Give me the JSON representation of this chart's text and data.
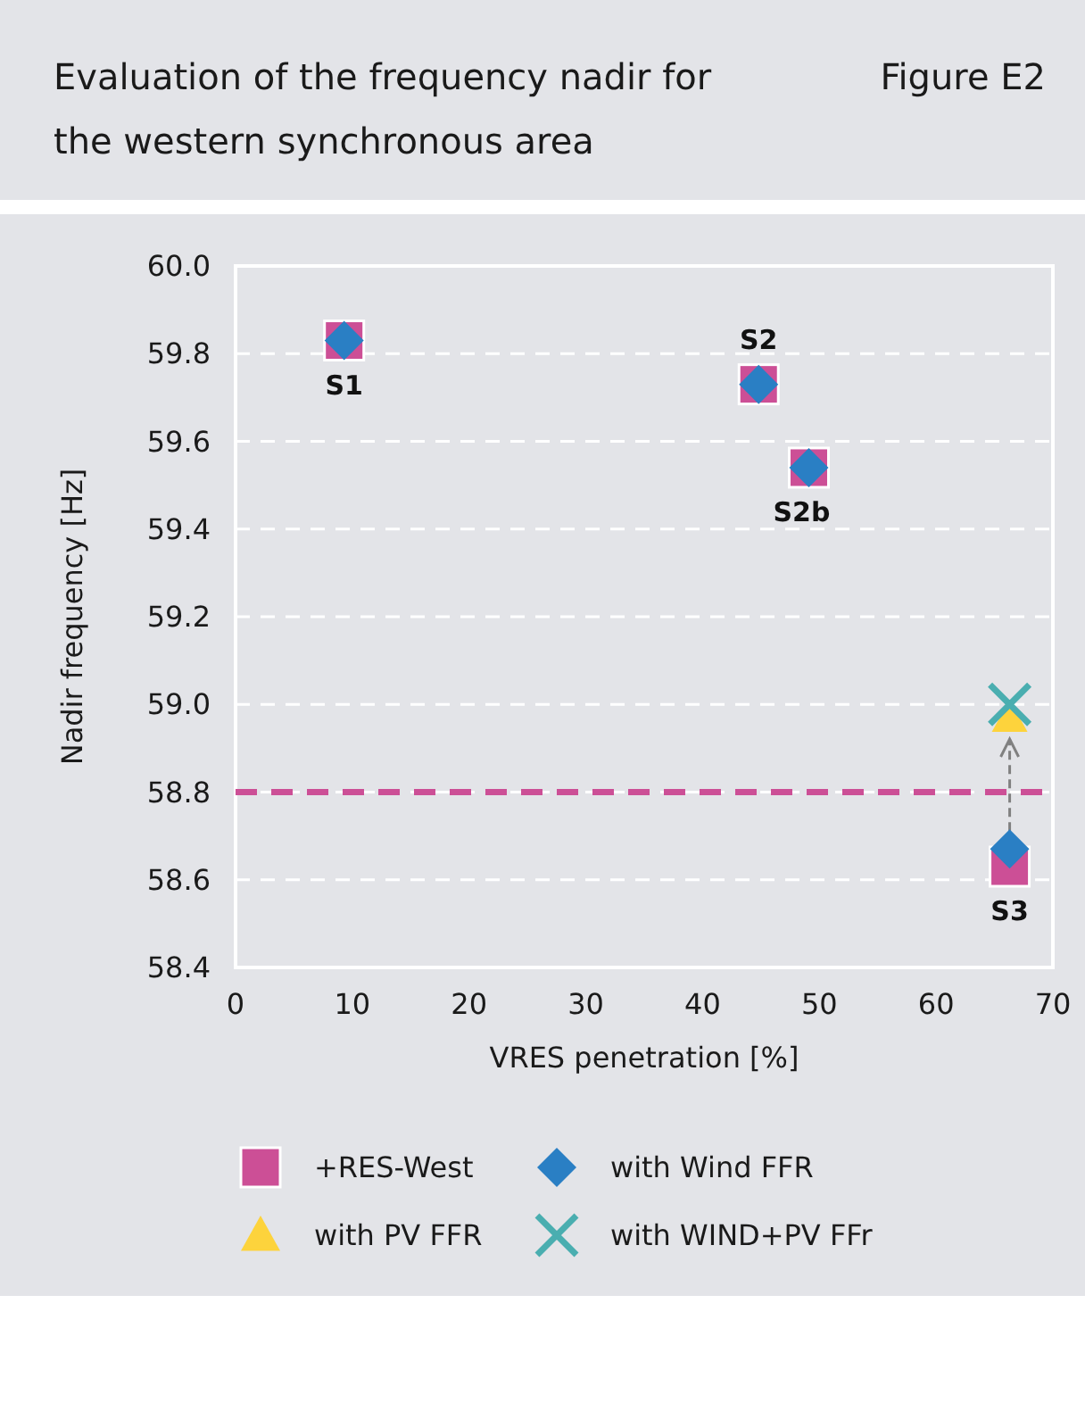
{
  "chart_data": {
    "type": "scatter",
    "title": "Evaluation of the frequency nadir for the western synchronous area",
    "subtitle": "Figure E2",
    "xlabel": "VRES penetration [%]",
    "ylabel": "Nadir frequency [Hz]",
    "xlim": [
      0,
      70
    ],
    "xticks": [
      0,
      10,
      20,
      30,
      40,
      50,
      60,
      70
    ],
    "ylim": [
      58.4,
      60
    ],
    "yticks": [
      {
        "value": 58.4,
        "label": "58.4"
      },
      {
        "value": 58.6,
        "label": "58.6"
      },
      {
        "value": 58.8,
        "label": "58.8"
      },
      {
        "value": 59,
        "label": "59.0"
      },
      {
        "value": 59.2,
        "label": "59.2"
      },
      {
        "value": 59.4,
        "label": "59.4"
      },
      {
        "value": 59.6,
        "label": "59.6"
      },
      {
        "value": 59.8,
        "label": "59.8"
      },
      {
        "value": 60,
        "label": "60.0"
      }
    ],
    "grid": "y",
    "legend": "bottom",
    "series": [
      {
        "name": "+RES-West",
        "color": "#cc4f96",
        "marker": "square",
        "x": [
          9.3,
          44.8,
          49.1,
          66.3
        ],
        "values": [
          59.83,
          59.73,
          59.54,
          58.63
        ]
      },
      {
        "name": "with Wind FFR",
        "color": "#2a7fc4",
        "marker": "diamond",
        "x": [
          9.3,
          44.8,
          49.1,
          66.3
        ],
        "values": [
          59.83,
          59.73,
          59.54,
          58.67
        ]
      },
      {
        "name": "with PV FFR",
        "color": "#fdd33c",
        "marker": "triangle",
        "x": [
          66.3
        ],
        "values": [
          58.97
        ]
      },
      {
        "name": "with WIND+PV FFr",
        "color": "#4aaeb0",
        "marker": "cross",
        "x": [
          66.3
        ],
        "values": [
          59.0
        ]
      }
    ],
    "ref_lines": [
      {
        "axis": "y",
        "value": 58.8,
        "color": "#cc4f96",
        "line_style": "dashed"
      }
    ],
    "annotations": [
      {
        "text": "S1",
        "x": 9.3,
        "y": 59.83
      },
      {
        "text": "S2",
        "x": 44.8,
        "y": 59.73
      },
      {
        "text": "S2b",
        "x": 49.1,
        "y": 59.54
      },
      {
        "text": "S3",
        "x": 66.3,
        "y": 58.63
      }
    ]
  }
}
